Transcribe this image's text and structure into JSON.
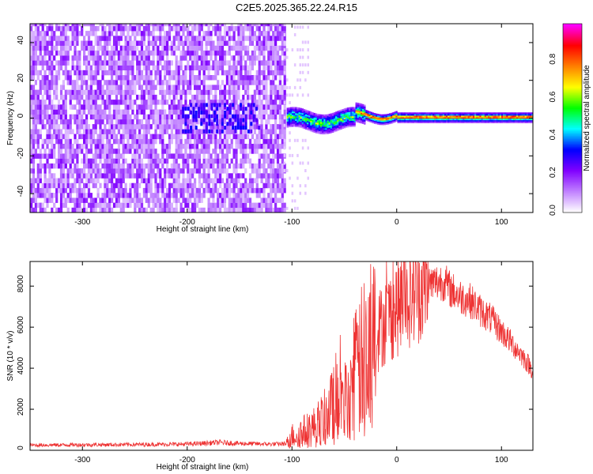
{
  "title": "C2E5.2025.365.22.24.R15",
  "chart_data": [
    {
      "type": "heatmap",
      "xlabel": "Height of straight line (km)",
      "ylabel": "Frequency (Hz)",
      "xlim": [
        -350,
        130
      ],
      "ylim": [
        -50,
        50
      ],
      "xticks": [
        "-300",
        "-200",
        "-100",
        "0",
        "100"
      ],
      "yticks": [
        "-40",
        "-20",
        "0",
        "20",
        "40"
      ],
      "colorbar": {
        "label": "Normalized spectral amplitude",
        "range": [
          0,
          1
        ],
        "ticks": [
          "0.0",
          "0.2",
          "0.4",
          "0.6",
          "0.8"
        ],
        "colors": [
          "#ffffff",
          "#c080ff",
          "#8000ff",
          "#0000ff",
          "#00ffff",
          "#00ff00",
          "#ffff00",
          "#ff8000",
          "#ff0000",
          "#ff00ff"
        ]
      },
      "regions": [
        {
          "description_free": true,
          "x": [
            -350,
            -105
          ],
          "freq": [
            -50,
            50
          ],
          "amplitude": 0.12
        },
        {
          "description_free": true,
          "x": [
            -105,
            -30
          ],
          "freq": [
            -5,
            5
          ],
          "amplitude": 0.55
        },
        {
          "description_free": true,
          "x": [
            -30,
            130
          ],
          "freq": [
            -2,
            2
          ],
          "amplitude": 0.75
        }
      ]
    },
    {
      "type": "line",
      "xlabel": "Height of straight line (km)",
      "ylabel": "SNR (10 * v/v)",
      "xlim": [
        -350,
        130
      ],
      "ylim": [
        0,
        9200
      ],
      "xticks": [
        "-300",
        "-200",
        "-100",
        "0",
        "100"
      ],
      "yticks": [
        "0",
        "2000",
        "4000",
        "6000",
        "8000"
      ],
      "series_color": "#ee3333",
      "x": [
        -350,
        -300,
        -250,
        -200,
        -170,
        -150,
        -120,
        -105,
        -100,
        -90,
        -80,
        -70,
        -60,
        -55,
        -50,
        -45,
        -40,
        -30,
        -20,
        -10,
        0,
        10,
        20,
        30,
        40,
        45,
        50,
        60,
        70,
        80,
        90,
        100,
        110,
        120,
        130
      ],
      "values": [
        250,
        270,
        280,
        300,
        380,
        330,
        300,
        320,
        700,
        900,
        1100,
        1500,
        2200,
        3200,
        2400,
        3000,
        3600,
        4600,
        5600,
        6400,
        6900,
        7500,
        7900,
        8100,
        8200,
        8250,
        7900,
        7500,
        7300,
        6800,
        6400,
        5800,
        5200,
        4600,
        3900
      ]
    }
  ]
}
